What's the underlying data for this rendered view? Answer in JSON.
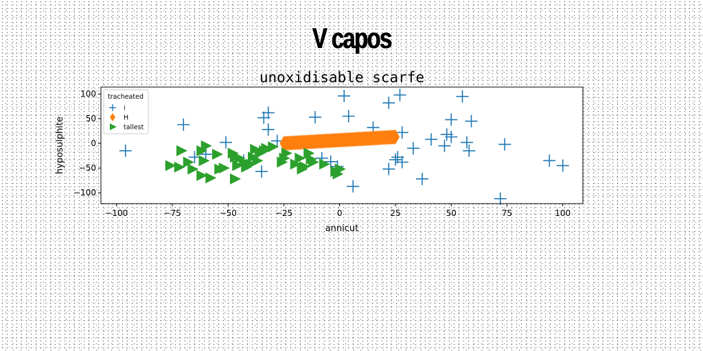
{
  "suptitle": "V capos",
  "chart_data": {
    "type": "scatter",
    "title": "unoxidisable scarfe",
    "xlabel": "annicut",
    "ylabel": "hyposulphite",
    "xlim": [
      -107,
      109
    ],
    "ylim": [
      -122,
      114
    ],
    "xticks": [
      -100,
      -75,
      -50,
      -25,
      0,
      25,
      50,
      75,
      100
    ],
    "yticks": [
      -100,
      -50,
      0,
      50,
      100
    ],
    "grid": false,
    "legend": {
      "title": "tracheated",
      "position": "top-left"
    },
    "colors": {
      "series_i": "#1f77b4",
      "series_h": "#ff7f0e",
      "series_tallest": "#2ca02c"
    },
    "series": [
      {
        "name": "i",
        "marker": "plus",
        "color": "#1f77b4",
        "points": [
          [
            -96,
            -15
          ],
          [
            -70,
            38
          ],
          [
            -65,
            -28
          ],
          [
            -60,
            -22
          ],
          [
            -51,
            2
          ],
          [
            -43,
            -35
          ],
          [
            -35,
            -57
          ],
          [
            -34,
            52
          ],
          [
            -32,
            62
          ],
          [
            -32,
            28
          ],
          [
            -28,
            5
          ],
          [
            -11,
            53
          ],
          [
            -8,
            -30
          ],
          [
            -4,
            -37
          ],
          [
            -1,
            -47
          ],
          [
            2,
            96
          ],
          [
            4,
            55
          ],
          [
            6,
            -87
          ],
          [
            15,
            32
          ],
          [
            22,
            82
          ],
          [
            22,
            -52
          ],
          [
            25,
            -33
          ],
          [
            26,
            -28
          ],
          [
            27,
            98
          ],
          [
            28,
            -38
          ],
          [
            28,
            22
          ],
          [
            33,
            -10
          ],
          [
            37,
            -72
          ],
          [
            41,
            8
          ],
          [
            47,
            -5
          ],
          [
            48,
            18
          ],
          [
            50,
            48
          ],
          [
            50,
            13
          ],
          [
            55,
            95
          ],
          [
            57,
            2
          ],
          [
            58,
            -15
          ],
          [
            59,
            45
          ],
          [
            72,
            -112
          ],
          [
            74,
            -2
          ],
          [
            94,
            -35
          ],
          [
            100,
            -45
          ]
        ]
      },
      {
        "name": "H",
        "marker": "thin_diamond",
        "color": "#ff7f0e",
        "start": [
          -25,
          0
        ],
        "end": [
          25,
          13
        ],
        "count": 90
      },
      {
        "name": "tallest",
        "marker": "triangle_right",
        "color": "#2ca02c",
        "points": [
          [
            -71,
            -15
          ],
          [
            -72,
            -48
          ],
          [
            -76,
            -45
          ],
          [
            -68,
            -38
          ],
          [
            -66,
            -52
          ],
          [
            -62,
            -15
          ],
          [
            -61,
            -35
          ],
          [
            -60,
            -5
          ],
          [
            -58,
            -70
          ],
          [
            -62,
            -65
          ],
          [
            -55,
            -22
          ],
          [
            -54,
            -52
          ],
          [
            -52,
            -50
          ],
          [
            -47,
            -72
          ],
          [
            -48,
            -20
          ],
          [
            -47,
            -28
          ],
          [
            -46,
            -45
          ],
          [
            -45,
            -30
          ],
          [
            -43,
            -38
          ],
          [
            -42,
            -48
          ],
          [
            -40,
            -42
          ],
          [
            -38,
            -12
          ],
          [
            -39,
            -28
          ],
          [
            -37,
            -35
          ],
          [
            -36,
            -20
          ],
          [
            -34,
            -15
          ],
          [
            -33,
            -10
          ],
          [
            -30,
            -7
          ],
          [
            -26,
            -38
          ],
          [
            -25,
            -30
          ],
          [
            -24,
            -20
          ],
          [
            -20,
            -42
          ],
          [
            -18,
            -30
          ],
          [
            -17,
            -52
          ],
          [
            -16,
            -47
          ],
          [
            -14,
            -20
          ],
          [
            -13,
            -32
          ],
          [
            -12,
            -38
          ],
          [
            -7,
            -42
          ],
          [
            -2,
            -57
          ],
          [
            -1,
            -62
          ],
          [
            0,
            -52
          ]
        ]
      }
    ]
  }
}
